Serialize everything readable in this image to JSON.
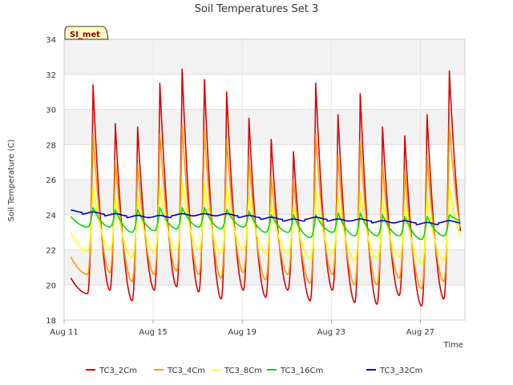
{
  "chart_data": {
    "type": "line",
    "title": "Soil Temperatures Set 3",
    "xlabel": "Time",
    "ylabel": "Soil Temperature (C)",
    "badge": "SI_met",
    "ylim": [
      18,
      34
    ],
    "y_ticks": [
      "18",
      "20",
      "22",
      "24",
      "26",
      "28",
      "30",
      "32",
      "34"
    ],
    "x_ticks": [
      {
        "day": 11,
        "label": "Aug 11"
      },
      {
        "day": 15,
        "label": "Aug 15"
      },
      {
        "day": 19,
        "label": "Aug 19"
      },
      {
        "day": 23,
        "label": "Aug 23"
      },
      {
        "day": 27,
        "label": "Aug 27"
      }
    ],
    "x_range_days": [
      11.0,
      29.0
    ],
    "data_range_days": [
      11.3,
      28.8
    ],
    "bands": {
      "colors": [
        "#f2f2f2",
        "#ffffff"
      ],
      "grid": true
    },
    "daily_peak_days": [
      11.3,
      12.3,
      13.3,
      14.3,
      15.3,
      16.3,
      17.3,
      18.3,
      19.3,
      20.3,
      21.3,
      22.3,
      23.3,
      24.3,
      25.3,
      26.3,
      27.3,
      28.3
    ],
    "series": [
      {
        "name": "TC3_2Cm",
        "color": "#dd0000",
        "daily_max": [
          20.4,
          31.4,
          29.2,
          29.0,
          31.5,
          32.3,
          31.7,
          31.0,
          29.5,
          28.3,
          27.6,
          31.5,
          29.7,
          30.9,
          29.0,
          28.5,
          29.7,
          32.2
        ],
        "daily_min": [
          19.5,
          19.7,
          19.1,
          19.7,
          19.9,
          19.6,
          19.2,
          19.7,
          19.3,
          19.7,
          19.1,
          19.7,
          19.0,
          18.9,
          19.4,
          18.8,
          19.2,
          21.6
        ]
      },
      {
        "name": "TC3_4Cm",
        "color": "#ff9900",
        "daily_max": [
          21.6,
          28.6,
          27.1,
          26.9,
          28.6,
          29.1,
          28.8,
          28.3,
          27.3,
          26.2,
          26.0,
          28.6,
          27.4,
          28.2,
          26.8,
          26.5,
          27.4,
          29.1
        ],
        "daily_min": [
          20.6,
          20.7,
          20.2,
          20.6,
          20.8,
          20.6,
          20.4,
          20.7,
          20.3,
          20.6,
          20.1,
          20.6,
          20.0,
          20.0,
          20.4,
          19.8,
          20.2,
          22.3
        ]
      },
      {
        "name": "TC3_8Cm",
        "color": "#ffff00",
        "daily_max": [
          23.0,
          25.6,
          25.0,
          24.9,
          25.6,
          25.9,
          25.8,
          25.5,
          25.1,
          24.6,
          24.5,
          25.4,
          25.1,
          25.3,
          24.8,
          24.6,
          24.9,
          25.6
        ],
        "daily_min": [
          21.9,
          22.0,
          21.6,
          21.9,
          22.0,
          22.0,
          21.8,
          22.0,
          21.8,
          21.8,
          21.5,
          21.8,
          21.4,
          21.5,
          21.6,
          21.2,
          21.4,
          22.3
        ]
      },
      {
        "name": "TC3_16Cm",
        "color": "#00dd00",
        "daily_max": [
          23.9,
          24.4,
          24.3,
          24.3,
          24.4,
          24.4,
          24.4,
          24.3,
          24.2,
          24.0,
          24.0,
          24.0,
          24.1,
          24.1,
          24.0,
          23.9,
          23.9,
          24.0
        ],
        "daily_min": [
          23.3,
          23.3,
          23.0,
          23.1,
          23.2,
          23.3,
          23.2,
          23.3,
          23.0,
          23.0,
          22.7,
          23.0,
          22.8,
          22.8,
          22.8,
          22.6,
          22.8,
          23.6
        ]
      },
      {
        "name": "TC3_32Cm",
        "color": "#0000cc",
        "daily_mean": [
          24.2,
          24.1,
          24.0,
          23.9,
          23.9,
          24.0,
          24.0,
          24.0,
          23.9,
          23.8,
          23.7,
          23.8,
          23.7,
          23.7,
          23.6,
          23.6,
          23.5,
          23.6
        ],
        "amplitude": 0.06
      }
    ],
    "legend_position": "bottom"
  }
}
